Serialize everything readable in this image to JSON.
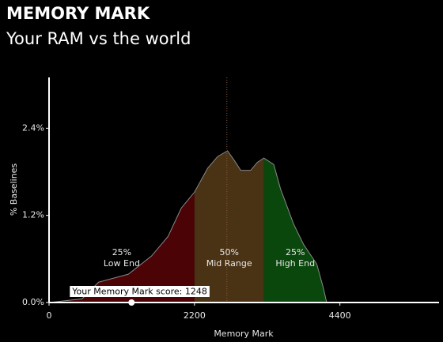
{
  "chart_data": {
    "type": "area",
    "title": "MEMORY MARK",
    "subtitle": "Your RAM vs the world",
    "x_label": "Memory Mark",
    "y_label": "% Baselines",
    "xlim": [
      0,
      5900
    ],
    "ylim": [
      0,
      3.1
    ],
    "xticks": [
      0,
      2200,
      4400
    ],
    "yticks": [
      {
        "value": 0,
        "label": "0.0%"
      },
      {
        "value": 1.2,
        "label": "1.2%"
      },
      {
        "value": 2.4,
        "label": "2.4%"
      }
    ],
    "line_color": "#8a8a8a",
    "x": [
      0,
      500,
      750,
      1200,
      1550,
      1800,
      2000,
      2200,
      2400,
      2550,
      2700,
      2800,
      2900,
      3050,
      3150,
      3250,
      3400,
      3500,
      3700,
      3850,
      4050,
      4150,
      4200
    ],
    "values": [
      0,
      0.05,
      0.28,
      0.39,
      0.64,
      0.91,
      1.3,
      1.52,
      1.85,
      2.01,
      2.09,
      1.96,
      1.82,
      1.82,
      1.93,
      1.99,
      1.9,
      1.57,
      1.08,
      0.8,
      0.53,
      0.2,
      0
    ],
    "regions": [
      {
        "name": "Low End",
        "start": 0,
        "end": 2200,
        "color": "#4b0306",
        "value": 25,
        "value_label": "25%"
      },
      {
        "name": "Mid Range",
        "start": 2200,
        "end": 3250,
        "color": "#4a3214",
        "value": 50,
        "value_label": "50%"
      },
      {
        "name": "High End",
        "start": 3250,
        "end": 4200,
        "color": "#0a470c",
        "value": 25,
        "value_label": "25%"
      }
    ],
    "reference_x": 2690,
    "marker": {
      "x": 1248,
      "label": "Your Memory Mark score: 1248"
    }
  }
}
